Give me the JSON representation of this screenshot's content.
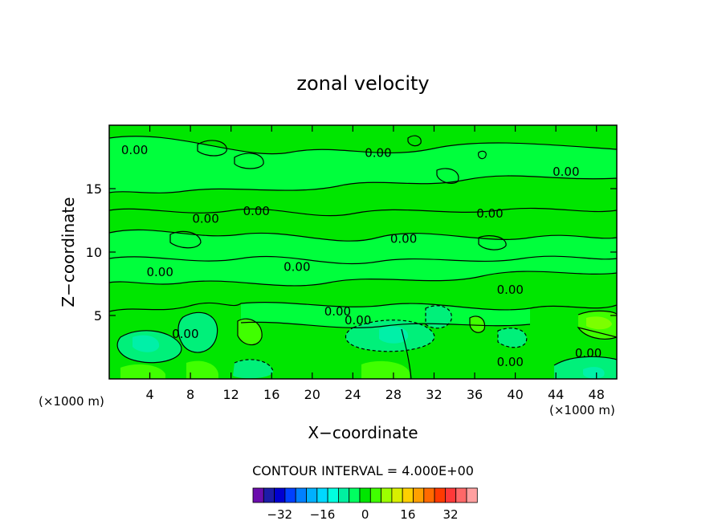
{
  "chart_data": {
    "type": "heatmap",
    "title": "zonal velocity",
    "xlabel": "X−coordinate",
    "ylabel": "Z−coordinate",
    "x_unit_left": "(×1000 m)",
    "x_unit_right": "(×1000 m)",
    "xlim": [
      0,
      50
    ],
    "ylim": [
      0,
      20
    ],
    "x_ticks": [
      4,
      8,
      12,
      16,
      20,
      24,
      28,
      32,
      36,
      40,
      44,
      48
    ],
    "x_tick_labels": [
      "4",
      "8",
      "12",
      "16",
      "20",
      "24",
      "28",
      "32",
      "36",
      "40",
      "44",
      "48"
    ],
    "y_ticks": [
      5,
      10,
      15
    ],
    "y_tick_labels": [
      "5",
      "10",
      "15"
    ],
    "contour_interval_text": "CONTOUR INTERVAL = 4.000E+00",
    "contour_labels": [
      {
        "text": "0.00",
        "x": 2.5,
        "y": 18.0
      },
      {
        "text": "0.00",
        "x": 26.5,
        "y": 17.8
      },
      {
        "text": "0.00",
        "x": 45.0,
        "y": 16.3
      },
      {
        "text": "0.00",
        "x": 9.5,
        "y": 12.6
      },
      {
        "text": "0.00",
        "x": 14.5,
        "y": 13.2
      },
      {
        "text": "0.00",
        "x": 37.5,
        "y": 13.0
      },
      {
        "text": "0.00",
        "x": 29.0,
        "y": 11.0
      },
      {
        "text": "0.00",
        "x": 18.5,
        "y": 8.8
      },
      {
        "text": "0.00",
        "x": 5.0,
        "y": 8.4
      },
      {
        "text": "0.00",
        "x": 39.5,
        "y": 7.0
      },
      {
        "text": "0.00",
        "x": 22.5,
        "y": 5.3
      },
      {
        "text": "0.00",
        "x": 24.5,
        "y": 4.6
      },
      {
        "text": "0.00",
        "x": 7.5,
        "y": 3.5
      },
      {
        "text": "0.00",
        "x": 39.5,
        "y": 1.3
      },
      {
        "text": "0.00",
        "x": 47.2,
        "y": 2.0
      }
    ],
    "colorbar": {
      "colors": [
        "#6a0dad",
        "#1c1ca8",
        "#0000d0",
        "#0040ff",
        "#0080ff",
        "#00b0ff",
        "#00d8ff",
        "#00ffe0",
        "#00f0a0",
        "#00ff60",
        "#00e600",
        "#40ff00",
        "#9cff00",
        "#d8f000",
        "#ffd000",
        "#ffa000",
        "#ff6a00",
        "#ff3a00",
        "#ff3838",
        "#ff6868",
        "#ffa0a0"
      ],
      "tick_values": [
        -32,
        -16,
        0,
        16,
        32
      ],
      "tick_labels": [
        "−32",
        "−16",
        "0",
        "16",
        "32"
      ]
    },
    "fill_colors": {
      "base": "#00e600",
      "zero_band": "#00ff3c",
      "negative_weak": "#00f07a",
      "negative_strong": "#00f0a8",
      "positive_weak": "#40ff00",
      "positive_mid": "#7cff00"
    }
  }
}
